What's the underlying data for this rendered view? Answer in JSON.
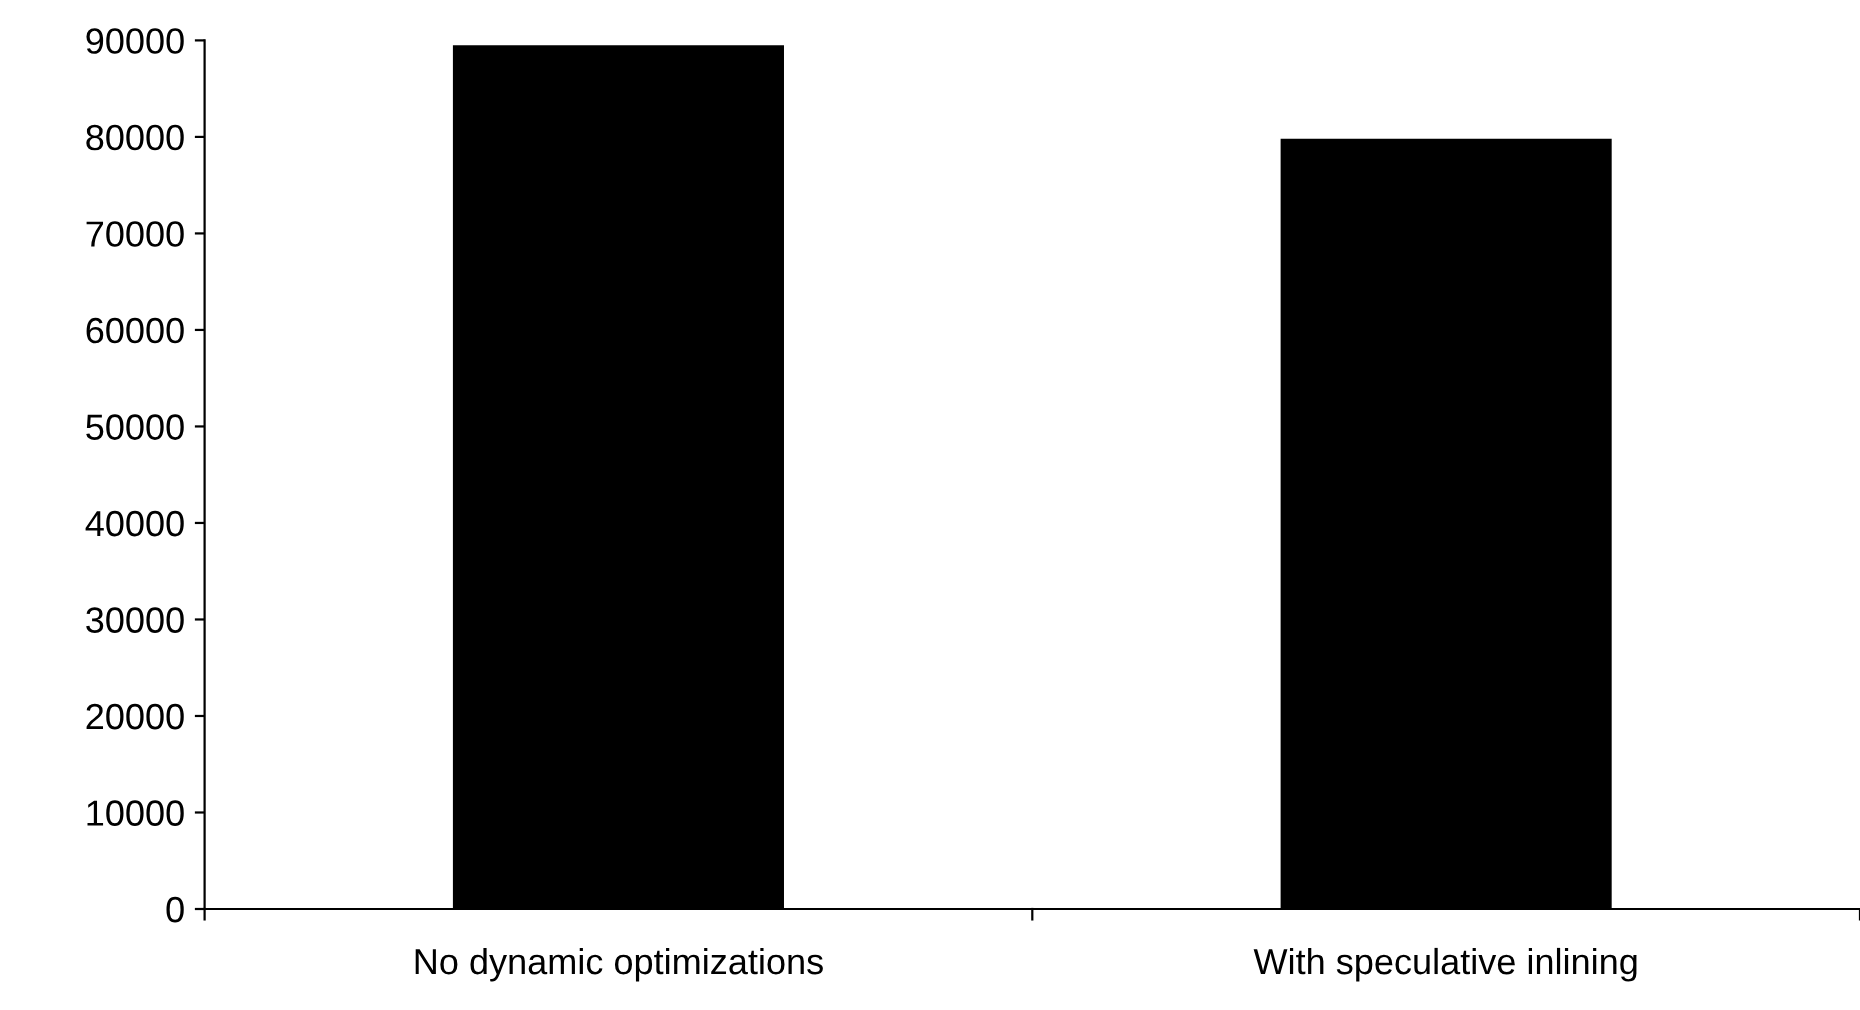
{
  "chart_data": {
    "type": "bar",
    "categories": [
      "No dynamic optimizations",
      "With speculative inlining"
    ],
    "values": [
      89500,
      79800
    ],
    "color": "#000000",
    "ylim": [
      0,
      90000
    ],
    "yticks": [
      0,
      10000,
      20000,
      30000,
      40000,
      50000,
      60000,
      70000,
      80000,
      90000
    ],
    "grid": false
  }
}
